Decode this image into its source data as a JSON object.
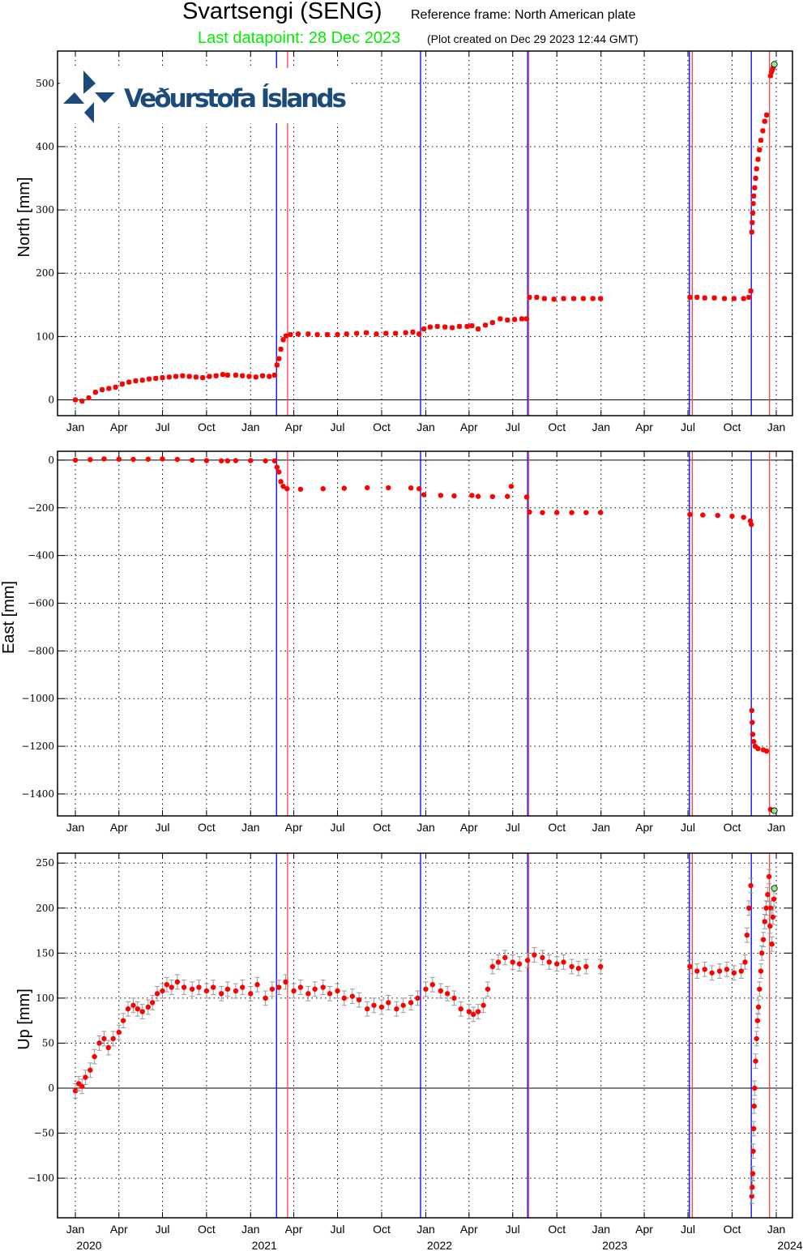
{
  "header": {
    "title": "Svartsengi (SENG)",
    "reference_frame": "Reference frame: North American plate",
    "last_datapoint": "Last datapoint: 28 Dec 2023",
    "plot_created": "(Plot created on Dec 29 2023 12:44 GMT)"
  },
  "logo": {
    "text": "Veðurstofa Íslands",
    "color": "#1b4b7a"
  },
  "colors": {
    "point": "#ff0000",
    "error_bar": "#999999",
    "last_point": "#90ee90",
    "highlight": "#00ee00"
  },
  "chart_data": [
    {
      "type": "scatter",
      "ylabel": "North [mm]",
      "ylim": [
        -25,
        551
      ],
      "yticks": [
        0,
        100,
        200,
        300,
        400,
        500
      ],
      "error_mm": 3,
      "grid": true,
      "points": [
        [
          "2020-01-01",
          0
        ],
        [
          "2020-01-15",
          -2
        ],
        [
          "2020-01-29",
          3
        ],
        [
          "2020-02-12",
          12
        ],
        [
          "2020-02-26",
          16
        ],
        [
          "2020-03-11",
          18
        ],
        [
          "2020-03-25",
          20
        ],
        [
          "2020-04-08",
          25
        ],
        [
          "2020-04-22",
          28
        ],
        [
          "2020-05-06",
          30
        ],
        [
          "2020-05-20",
          31
        ],
        [
          "2020-06-03",
          33
        ],
        [
          "2020-06-17",
          34
        ],
        [
          "2020-07-01",
          35
        ],
        [
          "2020-07-15",
          36
        ],
        [
          "2020-07-29",
          37
        ],
        [
          "2020-08-12",
          38
        ],
        [
          "2020-08-26",
          37
        ],
        [
          "2020-09-09",
          36
        ],
        [
          "2020-09-23",
          35
        ],
        [
          "2020-10-07",
          37
        ],
        [
          "2020-10-21",
          38
        ],
        [
          "2020-11-04",
          40
        ],
        [
          "2020-11-14",
          39
        ],
        [
          "2020-12-01",
          39
        ],
        [
          "2020-12-15",
          38
        ],
        [
          "2020-12-29",
          37
        ],
        [
          "2021-01-12",
          36
        ],
        [
          "2021-01-26",
          38
        ],
        [
          "2021-02-09",
          37
        ],
        [
          "2021-02-20",
          39
        ],
        [
          "2021-02-25",
          55
        ],
        [
          "2021-03-01",
          65
        ],
        [
          "2021-03-05",
          80
        ],
        [
          "2021-03-10",
          95
        ],
        [
          "2021-03-16",
          101
        ],
        [
          "2021-03-25",
          103
        ],
        [
          "2021-04-10",
          104
        ],
        [
          "2021-05-01",
          104
        ],
        [
          "2021-05-20",
          103
        ],
        [
          "2021-06-10",
          103
        ],
        [
          "2021-07-01",
          103
        ],
        [
          "2021-07-20",
          104
        ],
        [
          "2021-08-10",
          105
        ],
        [
          "2021-08-30",
          106
        ],
        [
          "2021-09-20",
          104
        ],
        [
          "2021-10-10",
          105
        ],
        [
          "2021-10-30",
          105
        ],
        [
          "2021-11-20",
          106
        ],
        [
          "2021-12-05",
          107
        ],
        [
          "2021-12-18",
          104
        ],
        [
          "2021-12-28",
          112
        ],
        [
          "2022-01-10",
          115
        ],
        [
          "2022-01-25",
          116
        ],
        [
          "2022-02-10",
          115
        ],
        [
          "2022-02-25",
          114
        ],
        [
          "2022-03-12",
          116
        ],
        [
          "2022-03-28",
          116
        ],
        [
          "2022-04-07",
          117
        ],
        [
          "2022-04-20",
          112
        ],
        [
          "2022-05-05",
          118
        ],
        [
          "2022-05-20",
          122
        ],
        [
          "2022-06-05",
          128
        ],
        [
          "2022-06-20",
          126
        ],
        [
          "2022-07-05",
          127
        ],
        [
          "2022-07-20",
          128
        ],
        [
          "2022-07-30",
          128
        ],
        [
          "2022-08-05",
          162
        ],
        [
          "2022-08-20",
          162
        ],
        [
          "2022-09-05",
          160
        ],
        [
          "2022-09-25",
          159
        ],
        [
          "2022-10-15",
          160
        ],
        [
          "2022-11-05",
          160
        ],
        [
          "2022-11-25",
          160
        ],
        [
          "2022-12-15",
          160
        ],
        [
          "2022-12-31",
          160
        ],
        [
          "2023-07-05",
          162
        ],
        [
          "2023-07-20",
          162
        ],
        [
          "2023-08-05",
          161
        ],
        [
          "2023-08-25",
          161
        ],
        [
          "2023-09-15",
          160
        ],
        [
          "2023-10-05",
          160
        ],
        [
          "2023-10-25",
          160
        ],
        [
          "2023-11-05",
          162
        ],
        [
          "2023-11-09",
          172
        ],
        [
          "2023-11-11",
          265
        ],
        [
          "2023-11-12",
          280
        ],
        [
          "2023-11-13",
          295
        ],
        [
          "2023-11-14",
          310
        ],
        [
          "2023-11-15",
          322
        ],
        [
          "2023-11-17",
          335
        ],
        [
          "2023-11-19",
          350
        ],
        [
          "2023-11-21",
          365
        ],
        [
          "2023-11-24",
          380
        ],
        [
          "2023-11-27",
          395
        ],
        [
          "2023-11-30",
          410
        ],
        [
          "2023-12-04",
          425
        ],
        [
          "2023-12-08",
          440
        ],
        [
          "2023-12-12",
          450
        ],
        [
          "2023-12-20",
          512
        ],
        [
          "2023-12-22",
          518
        ],
        [
          "2023-12-24",
          522
        ],
        [
          "2023-12-26",
          526
        ]
      ],
      "last_point": [
        "2023-12-28",
        530
      ]
    },
    {
      "type": "scatter",
      "ylabel": "East [mm]",
      "ylim": [
        -1492,
        37
      ],
      "yticks": [
        0,
        -200,
        -400,
        -600,
        -800,
        -1000,
        -1200,
        -1400
      ],
      "error_mm": 3,
      "grid": true,
      "points": [
        [
          "2020-01-01",
          0
        ],
        [
          "2020-02-01",
          2
        ],
        [
          "2020-03-01",
          5
        ],
        [
          "2020-04-01",
          4
        ],
        [
          "2020-05-01",
          3
        ],
        [
          "2020-06-01",
          4
        ],
        [
          "2020-07-01",
          5
        ],
        [
          "2020-08-01",
          3
        ],
        [
          "2020-09-01",
          0
        ],
        [
          "2020-10-01",
          -2
        ],
        [
          "2020-11-01",
          -3
        ],
        [
          "2020-11-14",
          -3
        ],
        [
          "2020-12-01",
          -2
        ],
        [
          "2021-01-01",
          -2
        ],
        [
          "2021-02-01",
          -3
        ],
        [
          "2021-02-20",
          -3
        ],
        [
          "2021-02-25",
          -30
        ],
        [
          "2021-03-01",
          -50
        ],
        [
          "2021-03-05",
          -90
        ],
        [
          "2021-03-10",
          -110
        ],
        [
          "2021-03-18",
          -120
        ],
        [
          "2021-04-15",
          -122
        ],
        [
          "2021-06-01",
          -120
        ],
        [
          "2021-07-15",
          -118
        ],
        [
          "2021-09-01",
          -116
        ],
        [
          "2021-10-15",
          -116
        ],
        [
          "2021-12-01",
          -117
        ],
        [
          "2021-12-18",
          -120
        ],
        [
          "2021-12-28",
          -145
        ],
        [
          "2022-02-01",
          -148
        ],
        [
          "2022-03-01",
          -150
        ],
        [
          "2022-04-07",
          -148
        ],
        [
          "2022-04-20",
          -152
        ],
        [
          "2022-05-20",
          -153
        ],
        [
          "2022-06-20",
          -152
        ],
        [
          "2022-06-28",
          -110
        ],
        [
          "2022-07-30",
          -155
        ],
        [
          "2022-08-05",
          -218
        ],
        [
          "2022-09-01",
          -220
        ],
        [
          "2022-10-01",
          -220
        ],
        [
          "2022-11-01",
          -220
        ],
        [
          "2022-12-01",
          -220
        ],
        [
          "2022-12-31",
          -220
        ],
        [
          "2023-07-05",
          -228
        ],
        [
          "2023-08-01",
          -230
        ],
        [
          "2023-09-01",
          -232
        ],
        [
          "2023-10-01",
          -235
        ],
        [
          "2023-10-25",
          -240
        ],
        [
          "2023-11-08",
          -255
        ],
        [
          "2023-11-10",
          -270
        ],
        [
          "2023-11-11",
          -1050
        ],
        [
          "2023-11-12",
          -1100
        ],
        [
          "2023-11-13",
          -1150
        ],
        [
          "2023-11-15",
          -1180
        ],
        [
          "2023-11-18",
          -1200
        ],
        [
          "2023-11-24",
          -1210
        ],
        [
          "2023-12-05",
          -1215
        ],
        [
          "2023-12-12",
          -1220
        ],
        [
          "2023-12-20",
          -1465
        ],
        [
          "2023-12-24",
          -1468
        ]
      ],
      "last_point": [
        "2023-12-28",
        -1470
      ]
    },
    {
      "type": "scatter",
      "ylabel": "Up [mm]",
      "ylim": [
        -144,
        261
      ],
      "yticks": [
        -100,
        -50,
        0,
        50,
        100,
        150,
        200,
        250
      ],
      "error_mm": 8,
      "grid": true,
      "points": [
        [
          "2020-01-01",
          -3
        ],
        [
          "2020-01-08",
          5
        ],
        [
          "2020-01-15",
          2
        ],
        [
          "2020-01-22",
          12
        ],
        [
          "2020-02-01",
          20
        ],
        [
          "2020-02-10",
          35
        ],
        [
          "2020-02-20",
          50
        ],
        [
          "2020-03-01",
          55
        ],
        [
          "2020-03-10",
          45
        ],
        [
          "2020-03-20",
          55
        ],
        [
          "2020-04-01",
          62
        ],
        [
          "2020-04-10",
          75
        ],
        [
          "2020-04-20",
          88
        ],
        [
          "2020-05-01",
          92
        ],
        [
          "2020-05-10",
          88
        ],
        [
          "2020-05-20",
          85
        ],
        [
          "2020-06-01",
          90
        ],
        [
          "2020-06-10",
          95
        ],
        [
          "2020-06-20",
          105
        ],
        [
          "2020-07-01",
          108
        ],
        [
          "2020-07-10",
          115
        ],
        [
          "2020-07-20",
          112
        ],
        [
          "2020-08-01",
          118
        ],
        [
          "2020-08-15",
          112
        ],
        [
          "2020-09-01",
          110
        ],
        [
          "2020-09-15",
          112
        ],
        [
          "2020-10-01",
          108
        ],
        [
          "2020-10-15",
          112
        ],
        [
          "2020-11-01",
          105
        ],
        [
          "2020-11-14",
          110
        ],
        [
          "2020-12-01",
          108
        ],
        [
          "2020-12-15",
          112
        ],
        [
          "2021-01-01",
          105
        ],
        [
          "2021-01-15",
          115
        ],
        [
          "2021-02-01",
          100
        ],
        [
          "2021-02-15",
          110
        ],
        [
          "2021-03-01",
          112
        ],
        [
          "2021-03-15",
          118
        ],
        [
          "2021-04-01",
          108
        ],
        [
          "2021-04-15",
          112
        ],
        [
          "2021-05-01",
          105
        ],
        [
          "2021-05-15",
          110
        ],
        [
          "2021-06-01",
          112
        ],
        [
          "2021-06-15",
          105
        ],
        [
          "2021-07-01",
          108
        ],
        [
          "2021-07-15",
          100
        ],
        [
          "2021-08-01",
          102
        ],
        [
          "2021-08-15",
          98
        ],
        [
          "2021-09-01",
          88
        ],
        [
          "2021-09-15",
          92
        ],
        [
          "2021-10-01",
          90
        ],
        [
          "2021-10-15",
          95
        ],
        [
          "2021-11-01",
          88
        ],
        [
          "2021-11-15",
          92
        ],
        [
          "2021-12-01",
          95
        ],
        [
          "2021-12-15",
          100
        ],
        [
          "2022-01-01",
          110
        ],
        [
          "2022-01-15",
          115
        ],
        [
          "2022-02-01",
          108
        ],
        [
          "2022-02-15",
          105
        ],
        [
          "2022-03-01",
          100
        ],
        [
          "2022-03-15",
          88
        ],
        [
          "2022-04-01",
          85
        ],
        [
          "2022-04-10",
          82
        ],
        [
          "2022-04-20",
          85
        ],
        [
          "2022-05-01",
          92
        ],
        [
          "2022-05-10",
          110
        ],
        [
          "2022-05-20",
          135
        ],
        [
          "2022-06-01",
          140
        ],
        [
          "2022-06-15",
          145
        ],
        [
          "2022-07-01",
          140
        ],
        [
          "2022-07-15",
          138
        ],
        [
          "2022-08-01",
          142
        ],
        [
          "2022-08-15",
          148
        ],
        [
          "2022-09-01",
          145
        ],
        [
          "2022-09-15",
          140
        ],
        [
          "2022-10-01",
          138
        ],
        [
          "2022-10-15",
          140
        ],
        [
          "2022-11-01",
          135
        ],
        [
          "2022-11-15",
          133
        ],
        [
          "2022-12-01",
          135
        ],
        [
          "2022-12-31",
          135
        ],
        [
          "2023-07-05",
          135
        ],
        [
          "2023-07-20",
          130
        ],
        [
          "2023-08-05",
          132
        ],
        [
          "2023-08-20",
          128
        ],
        [
          "2023-09-05",
          130
        ],
        [
          "2023-09-20",
          132
        ],
        [
          "2023-10-05",
          128
        ],
        [
          "2023-10-20",
          130
        ],
        [
          "2023-10-28",
          140
        ],
        [
          "2023-11-01",
          170
        ],
        [
          "2023-11-05",
          200
        ],
        [
          "2023-11-09",
          225
        ],
        [
          "2023-11-11",
          -120
        ],
        [
          "2023-11-12",
          -110
        ],
        [
          "2023-11-13",
          -95
        ],
        [
          "2023-11-14",
          -70
        ],
        [
          "2023-11-15",
          -45
        ],
        [
          "2023-11-16",
          -20
        ],
        [
          "2023-11-17",
          0
        ],
        [
          "2023-11-19",
          30
        ],
        [
          "2023-11-21",
          55
        ],
        [
          "2023-11-23",
          75
        ],
        [
          "2023-11-25",
          90
        ],
        [
          "2023-11-27",
          110
        ],
        [
          "2023-11-30",
          130
        ],
        [
          "2023-12-02",
          150
        ],
        [
          "2023-12-05",
          165
        ],
        [
          "2023-12-08",
          185
        ],
        [
          "2023-12-11",
          200
        ],
        [
          "2023-12-14",
          215
        ],
        [
          "2023-12-17",
          235
        ],
        [
          "2023-12-19",
          180
        ],
        [
          "2023-12-21",
          200
        ],
        [
          "2023-12-23",
          160
        ],
        [
          "2023-12-25",
          190
        ],
        [
          "2023-12-27",
          210
        ]
      ],
      "last_point": [
        "2023-12-28",
        222
      ]
    }
  ],
  "time_axis": {
    "range": [
      "2020-01-01",
      "2024-01-01"
    ],
    "month_ticks": [
      "Jan",
      "Apr",
      "Jul",
      "Oct"
    ],
    "year_labels": [
      "2020",
      "2021",
      "2022",
      "2023",
      "2024"
    ]
  },
  "events": [
    {
      "date": "2021-02-24",
      "color": "#0000ff"
    },
    {
      "date": "2021-03-19",
      "color": "#ff4040"
    },
    {
      "date": "2021-12-21",
      "color": "#0000ff"
    },
    {
      "date": "2022-08-01",
      "color": "#0000ff"
    },
    {
      "date": "2022-08-03",
      "color": "#ff4040"
    },
    {
      "date": "2023-07-04",
      "color": "#0000ff"
    },
    {
      "date": "2023-07-10",
      "color": "#ff4040"
    },
    {
      "date": "2023-11-10",
      "color": "#0000ff"
    },
    {
      "date": "2023-12-18",
      "color": "#ff4040"
    }
  ]
}
